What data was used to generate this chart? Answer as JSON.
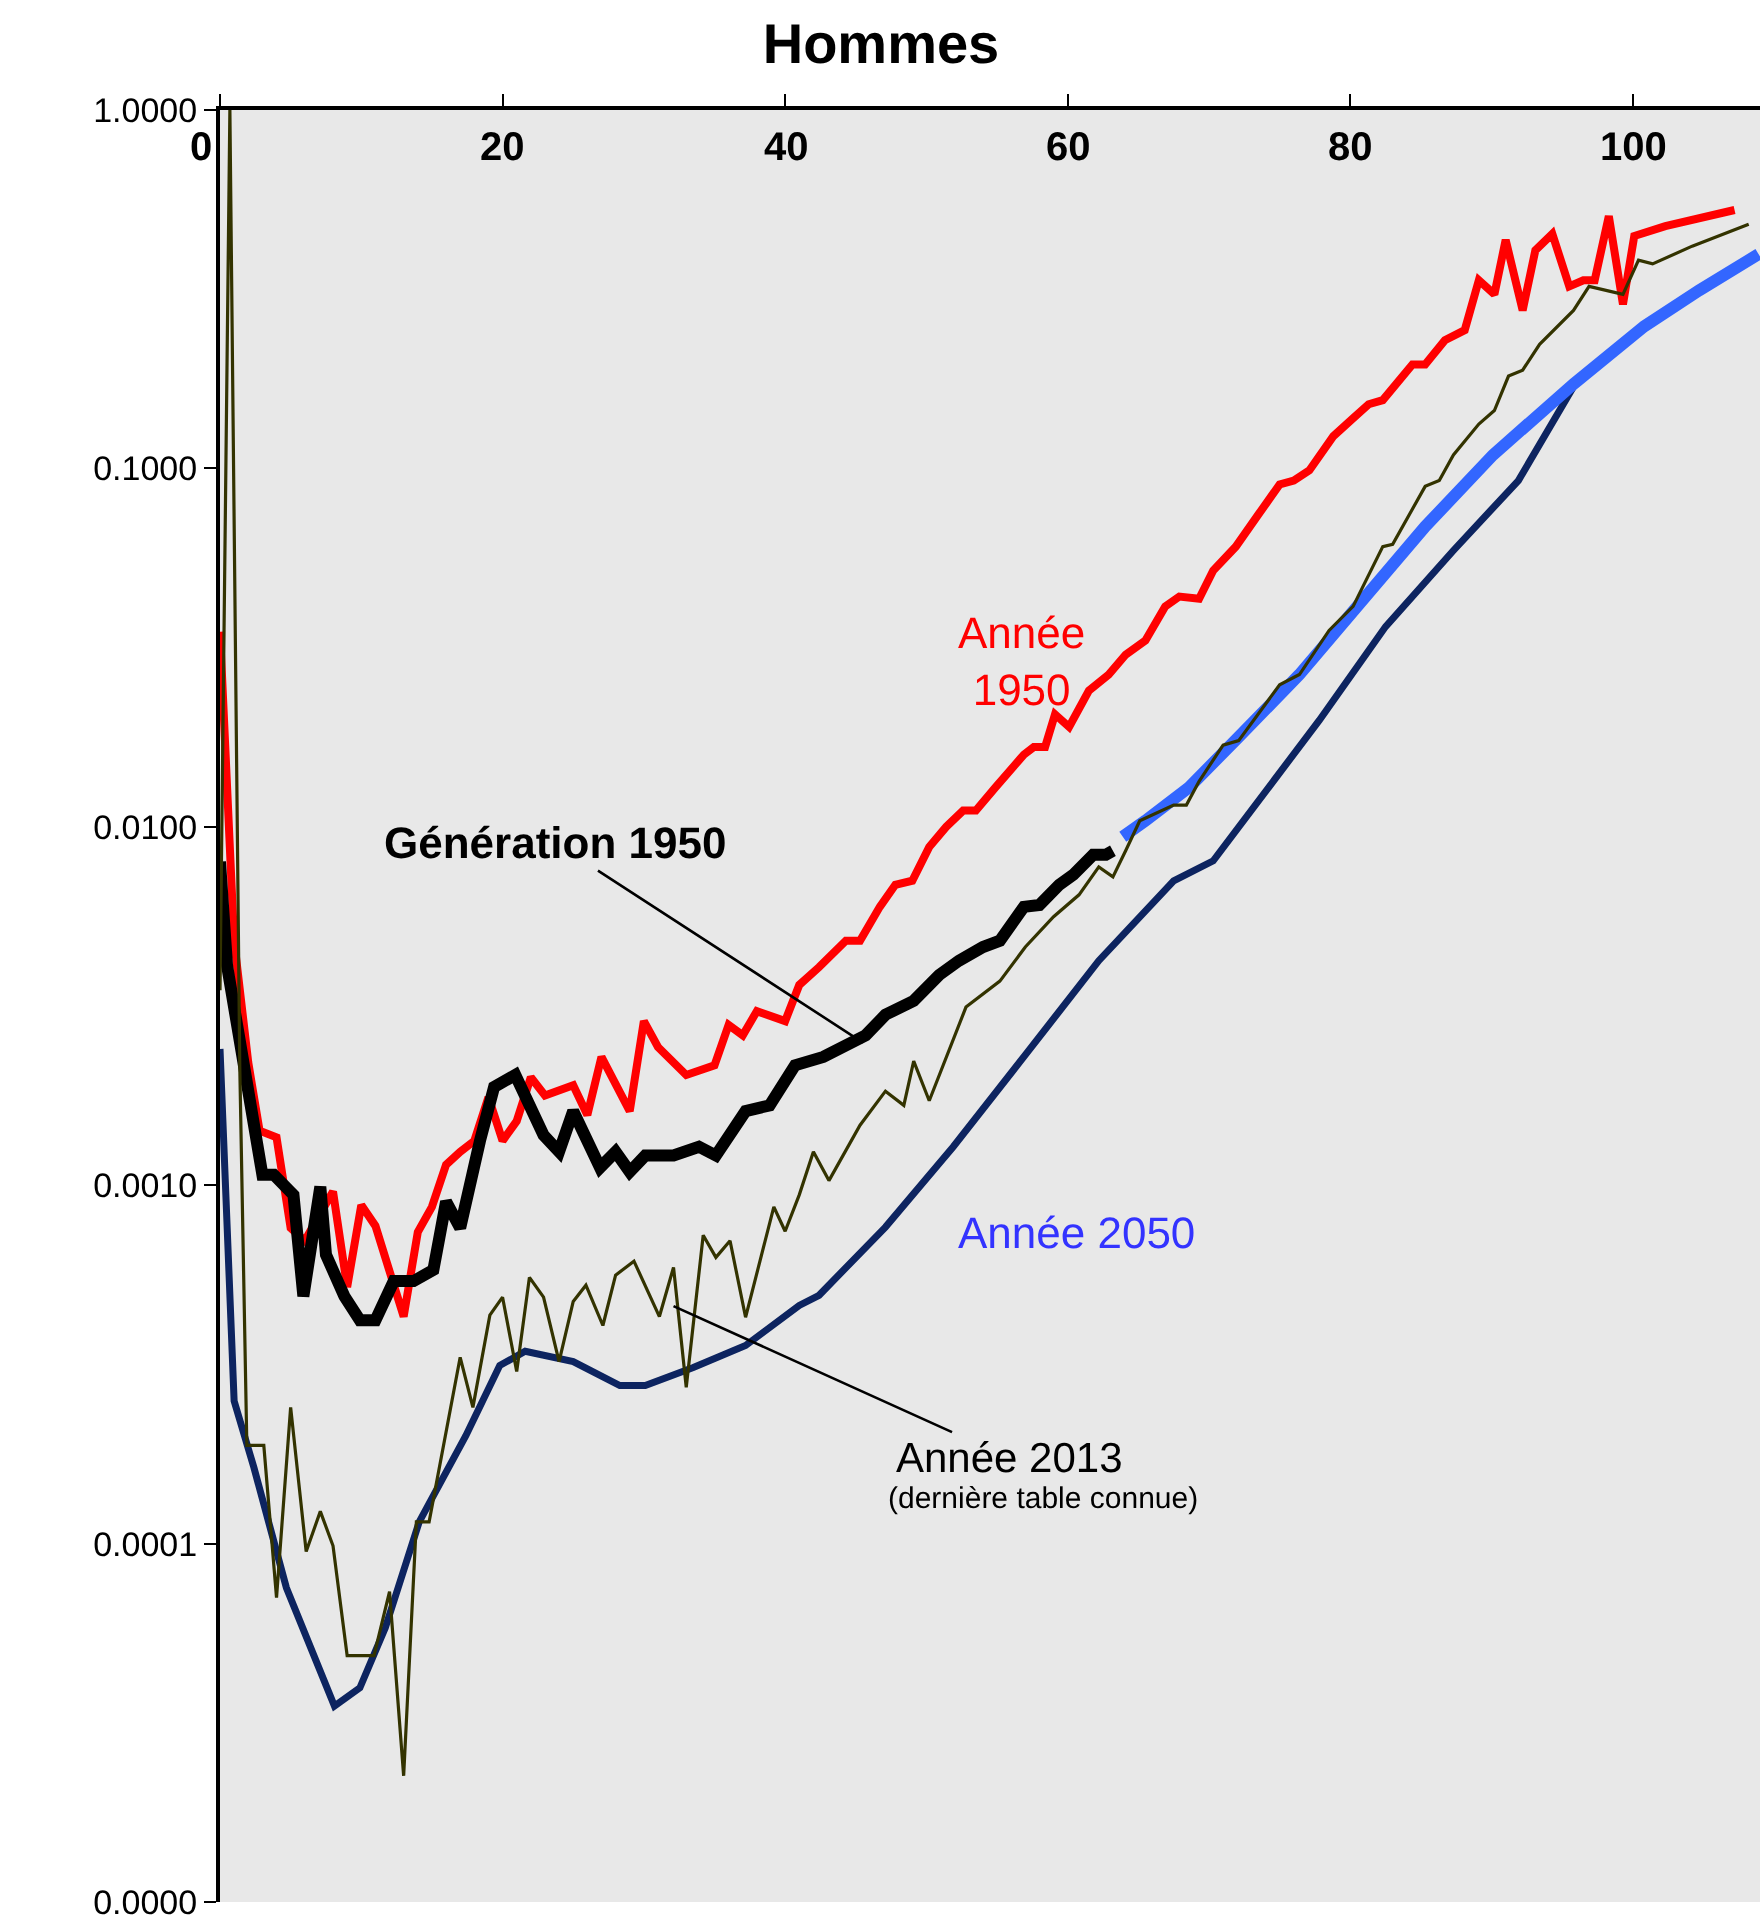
{
  "chart_data": {
    "type": "line",
    "title": "Hommes",
    "xlim": [
      0,
      109
    ],
    "xticks": [
      0,
      20,
      40,
      60,
      80,
      100
    ],
    "ylim": [
      1e-05,
      1
    ],
    "log": true,
    "yticks": [
      {
        "value": 1e-05,
        "label": "0.0000"
      },
      {
        "value": 0.0001,
        "label": "0.0001"
      },
      {
        "value": 0.001,
        "label": "0.0010"
      },
      {
        "value": 0.01,
        "label": "0.0100"
      },
      {
        "value": 0.1,
        "label": "0.1000"
      },
      {
        "value": 1,
        "label": "1.0000"
      }
    ],
    "grid": false,
    "marker": "none",
    "line_style": "solid",
    "series": [
      {
        "color": "#0d2460",
        "x": [
          0,
          1,
          2.4,
          4.7,
          8.1,
          9.9,
          11.7,
          14.1,
          17.4,
          19.8,
          21.6,
          25,
          28.3,
          30.1,
          33.5,
          37.2,
          41,
          42.4,
          47.1,
          51.9,
          57,
          62.2,
          67.5,
          70.3,
          77.8,
          82.5,
          87.3,
          91.9,
          95.8
        ],
        "values": [
          0.0024,
          0.00025,
          0.000163,
          7.53e-05,
          3.52e-05,
          3.96e-05,
          5.82e-05,
          0.000115,
          0.0002,
          0.000314,
          0.000344,
          0.000322,
          0.000276,
          0.000276,
          0.00031,
          0.000357,
          0.000462,
          0.000493,
          0.000764,
          0.00128,
          0.00231,
          0.00423,
          0.00707,
          0.00804,
          0.0198,
          0.0362,
          0.059,
          0.0925,
          0.169
        ]
      },
      {
        "color": "#333300",
        "x": [
          0,
          0.7,
          1.4,
          1.9,
          3.1,
          4,
          5,
          6.1,
          7.1,
          8,
          9,
          10.9,
          12,
          13,
          13.9,
          14.8,
          17,
          17.9,
          19.1,
          20,
          21,
          21.9,
          22.9,
          24,
          25,
          25.9,
          27.1,
          28,
          29.3,
          31.1,
          32.1,
          33,
          34.2,
          35.1,
          36.1,
          37.2,
          39.2,
          40,
          41,
          42,
          43.1,
          45.3,
          47.1,
          48.4,
          49.1,
          50.2,
          52.8,
          55.2,
          57,
          59,
          60.8,
          62.2,
          63.2,
          64.1,
          65.1,
          67.5,
          68.4,
          69.3,
          71,
          72.1,
          75,
          76.4,
          78.5,
          80.2,
          82.3,
          83,
          85.3,
          86.3,
          87.3,
          89.1,
          90.2,
          91.2,
          92.2,
          93.4,
          95.8,
          96.9,
          99.3,
          100.4,
          101.4,
          104.2,
          108.2
        ],
        "values": [
          0.0035,
          1,
          0.00214,
          0.000188,
          0.000188,
          7.07e-05,
          0.00024,
          9.5e-05,
          0.000123,
          9.86e-05,
          4.87e-05,
          4.87e-05,
          7.34e-05,
          2.25e-05,
          0.000115,
          0.000115,
          0.000331,
          0.00024,
          0.000434,
          0.000487,
          0.000302,
          0.000553,
          0.000487,
          0.000322,
          0.000474,
          0.000526,
          0.000406,
          0.000561,
          0.000614,
          0.00043,
          0.00059,
          0.000273,
          0.000725,
          0.000629,
          0.0007,
          0.000428,
          0.00087,
          0.000744,
          0.00094,
          0.00124,
          0.00103,
          0.00147,
          0.00183,
          0.00167,
          0.00222,
          0.00172,
          0.00314,
          0.00371,
          0.00462,
          0.00561,
          0.00646,
          0.00773,
          0.00725,
          0.00857,
          0.0104,
          0.0115,
          0.0115,
          0.0134,
          0.0169,
          0.0174,
          0.0249,
          0.0266,
          0.0353,
          0.0412,
          0.0605,
          0.0614,
          0.0891,
          0.0925,
          0.109,
          0.133,
          0.145,
          0.181,
          0.188,
          0.222,
          0.276,
          0.322,
          0.306,
          0.381,
          0.372,
          0.417,
          0.48
        ]
      },
      {
        "color": "#ff0000",
        "x": [
          0,
          1,
          2,
          2.8,
          4,
          5,
          6,
          8,
          9,
          10,
          11,
          13,
          14,
          15,
          16,
          17,
          18,
          19,
          20,
          21,
          22,
          23,
          25,
          26,
          27,
          29,
          30,
          31,
          33,
          35,
          36,
          37,
          38,
          40,
          41,
          42.4,
          44.3,
          45.3,
          46.7,
          47.8,
          49,
          50.2,
          51.4,
          52.6,
          53.5,
          54.9,
          56.9,
          57.6,
          58.4,
          59.1,
          60.1,
          61.5,
          62.9,
          64.1,
          65.5,
          66.9,
          67.9,
          69.3,
          70.3,
          71.9,
          73.5,
          75,
          76,
          77.1,
          78.8,
          80.2,
          81.3,
          82.3,
          84.4,
          85.3,
          86.7,
          88.1,
          89.1,
          90.2,
          91,
          92.2,
          93.1,
          94.3,
          95.5,
          96.5,
          97.3,
          98.3,
          99.3,
          100.1,
          102.3,
          107.2
        ],
        "values": [
          0.035,
          0.0048,
          0.0022,
          0.00142,
          0.00136,
          0.00076,
          0.0007,
          0.00096,
          0.00052,
          0.00088,
          0.00077,
          0.00043,
          0.00074,
          0.00087,
          0.00114,
          0.00124,
          0.00133,
          0.00176,
          0.00133,
          0.00151,
          0.002,
          0.00178,
          0.0019,
          0.00157,
          0.00228,
          0.00161,
          0.00287,
          0.00243,
          0.00203,
          0.00216,
          0.0028,
          0.00262,
          0.00306,
          0.00287,
          0.00362,
          0.00406,
          0.00481,
          0.00481,
          0.00598,
          0.00689,
          0.00707,
          0.00879,
          0.01,
          0.0111,
          0.0111,
          0.0129,
          0.0159,
          0.0167,
          0.0167,
          0.0206,
          0.019,
          0.024,
          0.0266,
          0.0302,
          0.0331,
          0.0412,
          0.0439,
          0.0433,
          0.0519,
          0.0605,
          0.0744,
          0.0902,
          0.0925,
          0.0987,
          0.123,
          0.138,
          0.151,
          0.155,
          0.195,
          0.195,
          0.228,
          0.243,
          0.335,
          0.306,
          0.434,
          0.276,
          0.406,
          0.451,
          0.322,
          0.335,
          0.335,
          0.506,
          0.287,
          0.445,
          0.474,
          0.526
        ]
      },
      {
        "color": "#000000",
        "x": [
          0,
          0.5,
          3,
          3.8,
          5.2,
          5.9,
          7.1,
          7.5,
          8.8,
          9.9,
          11,
          12.3,
          13.7,
          15.1,
          16,
          17,
          18.4,
          19.4,
          20.9,
          22.9,
          24,
          25,
          26.9,
          28,
          29,
          30.1,
          32.1,
          33.9,
          35.1,
          37.2,
          38.9,
          40.7,
          42.7,
          45.7,
          47.1,
          49.1,
          50.9,
          52.3,
          54,
          55.2,
          56.9,
          58,
          59.4,
          60.4,
          61.8,
          62.7,
          63.2
        ],
        "values": [
          0.008,
          0.0041,
          0.00107,
          0.00107,
          0.00094,
          0.00049,
          0.00099,
          0.00064,
          0.00049,
          0.00042,
          0.00042,
          0.00054,
          0.00054,
          0.00058,
          0.0009,
          0.00076,
          0.00133,
          0.00188,
          0.00203,
          0.00138,
          0.00124,
          0.00161,
          0.00112,
          0.00124,
          0.00109,
          0.00121,
          0.00121,
          0.00128,
          0.00121,
          0.00161,
          0.00167,
          0.00216,
          0.00228,
          0.00262,
          0.00299,
          0.00327,
          0.00386,
          0.00423,
          0.00462,
          0.00481,
          0.00598,
          0.00605,
          0.00689,
          0.00735,
          0.00836,
          0.00836,
          0.00857
        ]
      },
      {
        "color": "#3366ff",
        "x": [
          63.9,
          65.5,
          68.6,
          72.1,
          76.4,
          80.6,
          85.3,
          90.1,
          95.8,
          100.8,
          104.7,
          108.9
        ],
        "values": [
          0.00938,
          0.0104,
          0.0129,
          0.0178,
          0.0266,
          0.0417,
          0.0688,
          0.109,
          0.172,
          0.249,
          0.314,
          0.396
        ]
      }
    ],
    "annotations": [
      "Année\n1950",
      {
        "text": "Génération 1950",
        "x": 45.5,
        "y": 0.0025
      },
      "Année 2050",
      {
        "text": "Année 2013",
        "x": 32.1,
        "y": 0.00046
      },
      "(dernière table connue)"
    ]
  }
}
